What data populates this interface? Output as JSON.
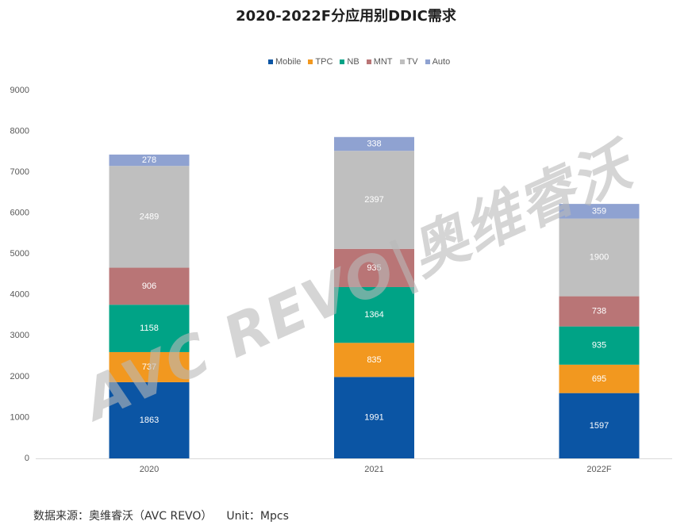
{
  "watermark": "AVC REVO|奥维睿沃",
  "footer": {
    "source": "数据来源：奥维睿沃（AVC REVO）",
    "unit": "Unit：Mpcs"
  },
  "chart_data": {
    "type": "bar",
    "stacked": true,
    "title": "2020-2022F分应用别DDIC需求",
    "categories": [
      "2020",
      "2021",
      "2022F"
    ],
    "series": [
      {
        "name": "Mobile",
        "values": [
          1863,
          1991,
          1597
        ],
        "color": "#0b55a4"
      },
      {
        "name": "TPC",
        "values": [
          737,
          835,
          695
        ],
        "color": "#f2981f"
      },
      {
        "name": "NB",
        "values": [
          1158,
          1364,
          935
        ],
        "color": "#00a386"
      },
      {
        "name": "MNT",
        "values": [
          906,
          935,
          738
        ],
        "color": "#b97576"
      },
      {
        "name": "TV",
        "values": [
          2489,
          2397,
          1900
        ],
        "color": "#bfbfbf"
      },
      {
        "name": "Auto",
        "values": [
          278,
          338,
          359
        ],
        "color": "#8fa2d1"
      }
    ],
    "ylim": [
      0,
      9000
    ],
    "yticks": [
      0,
      1000,
      2000,
      3000,
      4000,
      5000,
      6000,
      7000,
      8000,
      9000
    ],
    "xlabel": "",
    "ylabel": "",
    "legend": "top-center",
    "grid": false,
    "data_labels": true
  }
}
